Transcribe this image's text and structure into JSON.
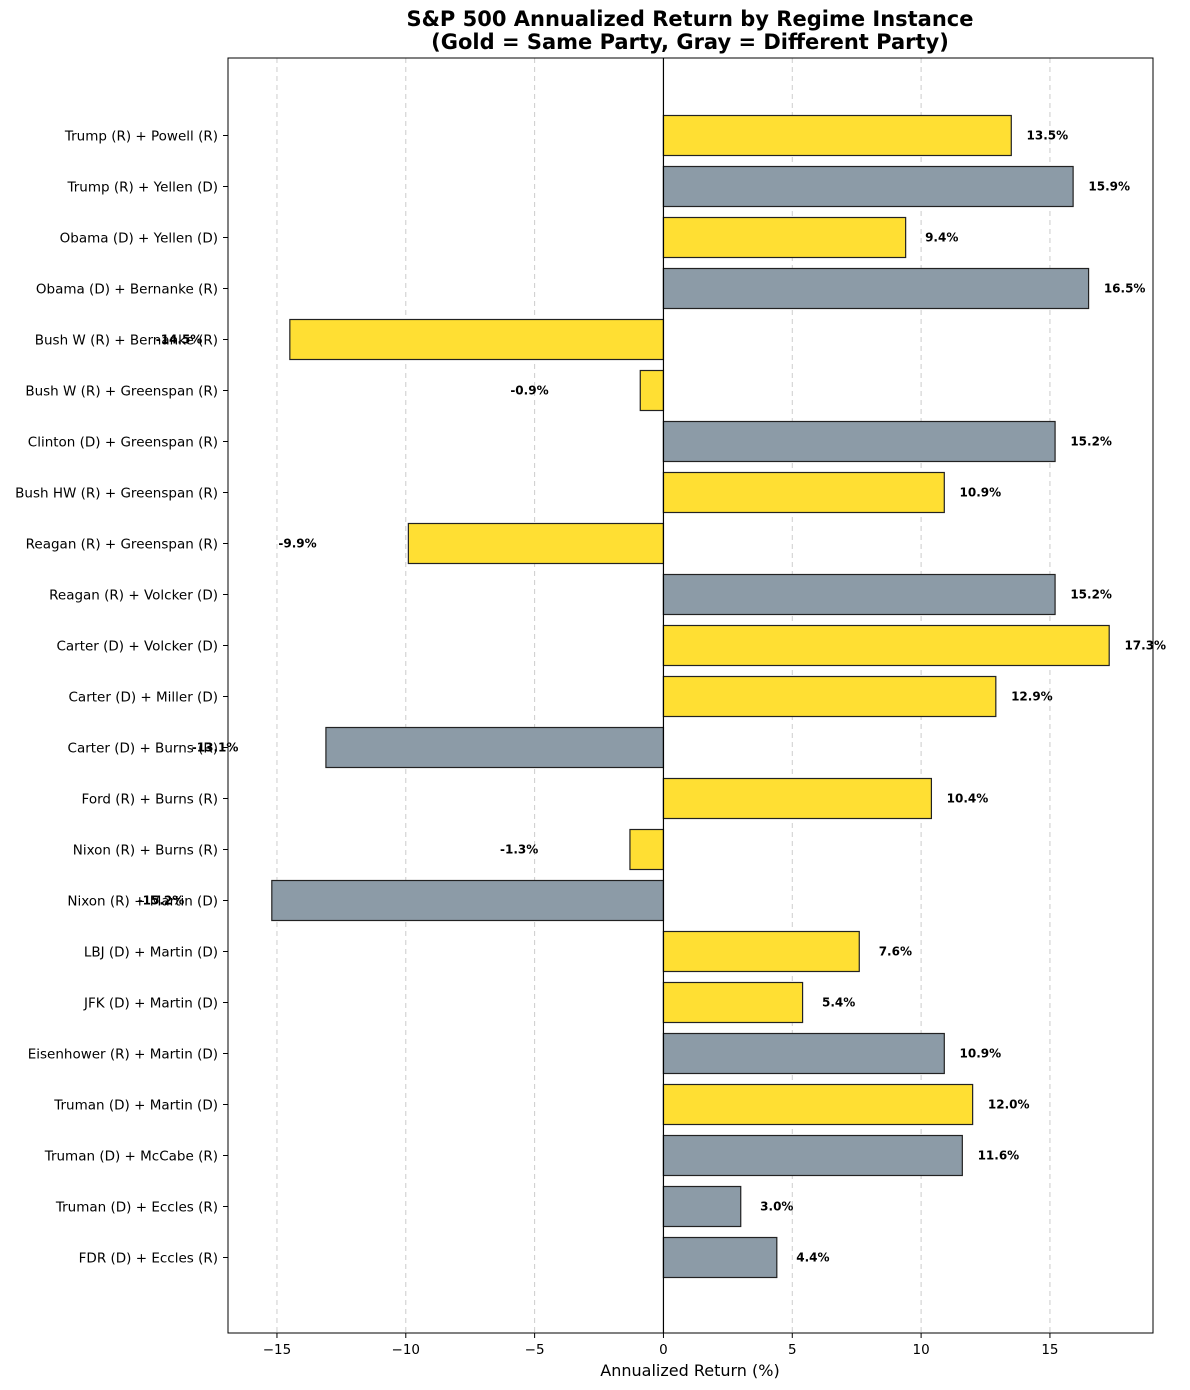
{
  "chart_data": {
    "type": "bar",
    "orientation": "horizontal",
    "title_line1": "S&P 500 Annualized Return by Regime Instance",
    "title_line2": "(Gold = Same Party, Gray = Different Party)",
    "xlabel": "Annualized Return (%)",
    "ylabel": "",
    "xlim": [
      -16.9,
      19.0
    ],
    "xticks": [
      -15,
      -10,
      -5,
      0,
      5,
      10,
      15
    ],
    "xtick_labels": [
      "−15",
      "−10",
      "−5",
      "0",
      "5",
      "10",
      "15"
    ],
    "grid": "x-dashed",
    "colors": {
      "same_party": "#FFDF33",
      "different_party": "#8C9BA7"
    },
    "categories": [
      "Trump (R) + Powell (R)",
      "Trump (R) + Yellen (D)",
      "Obama (D) + Yellen (D)",
      "Obama (D) + Bernanke (R)",
      "Bush W (R) + Bernanke (R)",
      "Bush W (R) + Greenspan (R)",
      "Clinton (D) + Greenspan (R)",
      "Bush HW (R) + Greenspan (R)",
      "Reagan (R) + Greenspan (R)",
      "Reagan (R) + Volcker (D)",
      "Carter (D) + Volcker (D)",
      "Carter (D) + Miller (D)",
      "Carter (D) + Burns (R)",
      "Ford (R) + Burns (R)",
      "Nixon (R) + Burns (R)",
      "Nixon (R) + Martin (D)",
      "LBJ (D) + Martin (D)",
      "JFK (D) + Martin (D)",
      "Eisenhower (R) + Martin (D)",
      "Truman (D) + Martin (D)",
      "Truman (D) + McCabe (R)",
      "Truman (D) + Eccles (R)",
      "FDR (D) + Eccles (R)"
    ],
    "values": [
      13.5,
      15.9,
      9.4,
      16.5,
      -14.5,
      -0.9,
      15.2,
      10.9,
      -9.9,
      15.2,
      17.3,
      12.9,
      -13.1,
      10.4,
      -1.3,
      -15.2,
      7.6,
      5.4,
      10.9,
      12.0,
      11.6,
      3.0,
      4.4
    ],
    "labels": [
      "13.5%",
      "15.9%",
      "9.4%",
      "16.5%",
      "-14.5%",
      "-0.9%",
      "15.2%",
      "10.9%",
      "-9.9%",
      "15.2%",
      "17.3%",
      "12.9%",
      "-13.1%",
      "10.4%",
      "-1.3%",
      "-15.2%",
      "7.6%",
      "5.4%",
      "10.9%",
      "12.0%",
      "11.6%",
      "3.0%",
      "4.4%"
    ],
    "same_party": [
      true,
      false,
      true,
      false,
      true,
      true,
      false,
      true,
      true,
      false,
      true,
      true,
      false,
      true,
      true,
      false,
      true,
      true,
      false,
      true,
      false,
      false,
      false
    ]
  }
}
